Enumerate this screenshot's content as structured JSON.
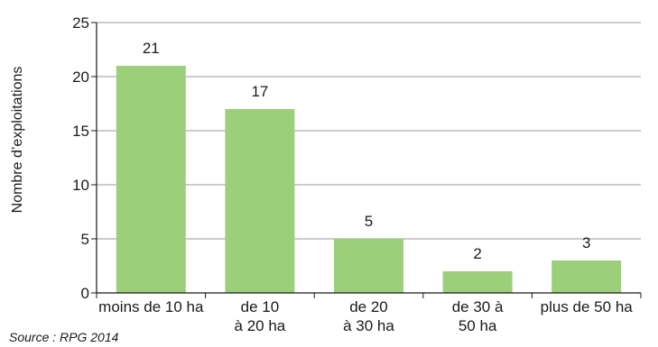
{
  "chart_data": {
    "type": "bar",
    "categories": [
      [
        "moins de 10 ha"
      ],
      [
        "de 10",
        "à 20 ha"
      ],
      [
        "de 20",
        "à 30 ha"
      ],
      [
        "de 30 à",
        "50 ha"
      ],
      [
        "plus de 50 ha"
      ]
    ],
    "values": [
      21,
      17,
      5,
      2,
      3
    ],
    "data_labels": [
      "21",
      "17",
      "5",
      "2",
      "3"
    ],
    "ylabel": "Nombre d’exploitations",
    "ylim": [
      0,
      25
    ],
    "yticks": [
      0,
      5,
      10,
      15,
      20,
      25
    ],
    "grid": true,
    "bar_color": "#9ccf7a",
    "source": "Source : RPG 2014"
  }
}
